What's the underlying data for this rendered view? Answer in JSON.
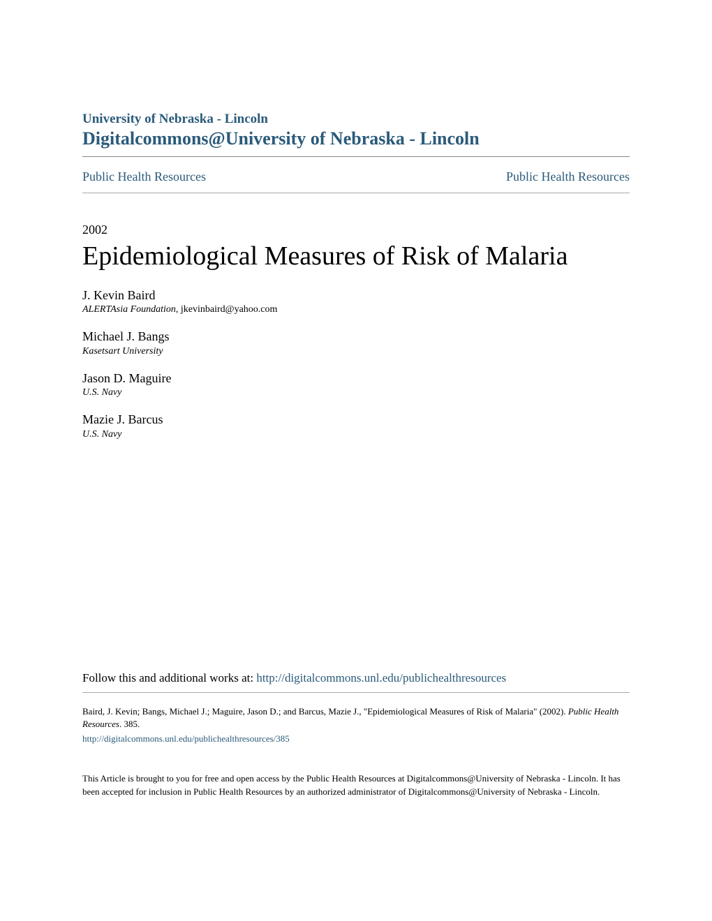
{
  "header": {
    "institution": "University of Nebraska - Lincoln",
    "repository": "Digitalcommons@University of Nebraska - Lincoln",
    "nav_left": "Public Health Resources",
    "nav_right": "Public Health Resources"
  },
  "article": {
    "year": "2002",
    "title": "Epidemiological Measures of Risk of Malaria"
  },
  "authors": [
    {
      "name": "J. Kevin Baird",
      "affiliation": "ALERTAsia Foundation",
      "email": ", jkevinbaird@yahoo.com"
    },
    {
      "name": "Michael J. Bangs",
      "affiliation": "Kasetsart University",
      "email": ""
    },
    {
      "name": "Jason D. Maguire",
      "affiliation": "U.S. Navy",
      "email": ""
    },
    {
      "name": "Mazie J. Barcus",
      "affiliation": "U.S. Navy",
      "email": ""
    }
  ],
  "follow": {
    "text": "Follow this and additional works at: ",
    "url": "http://digitalcommons.unl.edu/publichealthresources"
  },
  "citation": {
    "text": "Baird, J. Kevin; Bangs, Michael J.; Maguire, Jason D.; and Barcus, Mazie J., \"Epidemiological Measures of Risk of Malaria\" (2002). ",
    "series": "Public Health Resources",
    "number": ". 385.",
    "url": "http://digitalcommons.unl.edu/publichealthresources/385"
  },
  "disclaimer": "This Article is brought to you for free and open access by the Public Health Resources at Digitalcommons@University of Nebraska - Lincoln. It has been accepted for inclusion in Public Health Resources by an authorized administrator of Digitalcommons@University of Nebraska - Lincoln.",
  "colors": {
    "link_color": "#2a5a7a",
    "text_color": "#000000",
    "background": "#ffffff",
    "hr_color": "#888888"
  },
  "typography": {
    "body_font": "Georgia, serif",
    "institution_size": 19,
    "repository_size": 26,
    "nav_size": 18,
    "year_size": 18,
    "title_size": 38,
    "author_name_size": 18,
    "author_affiliation_size": 14,
    "follow_size": 17,
    "citation_size": 13,
    "disclaimer_size": 13
  }
}
